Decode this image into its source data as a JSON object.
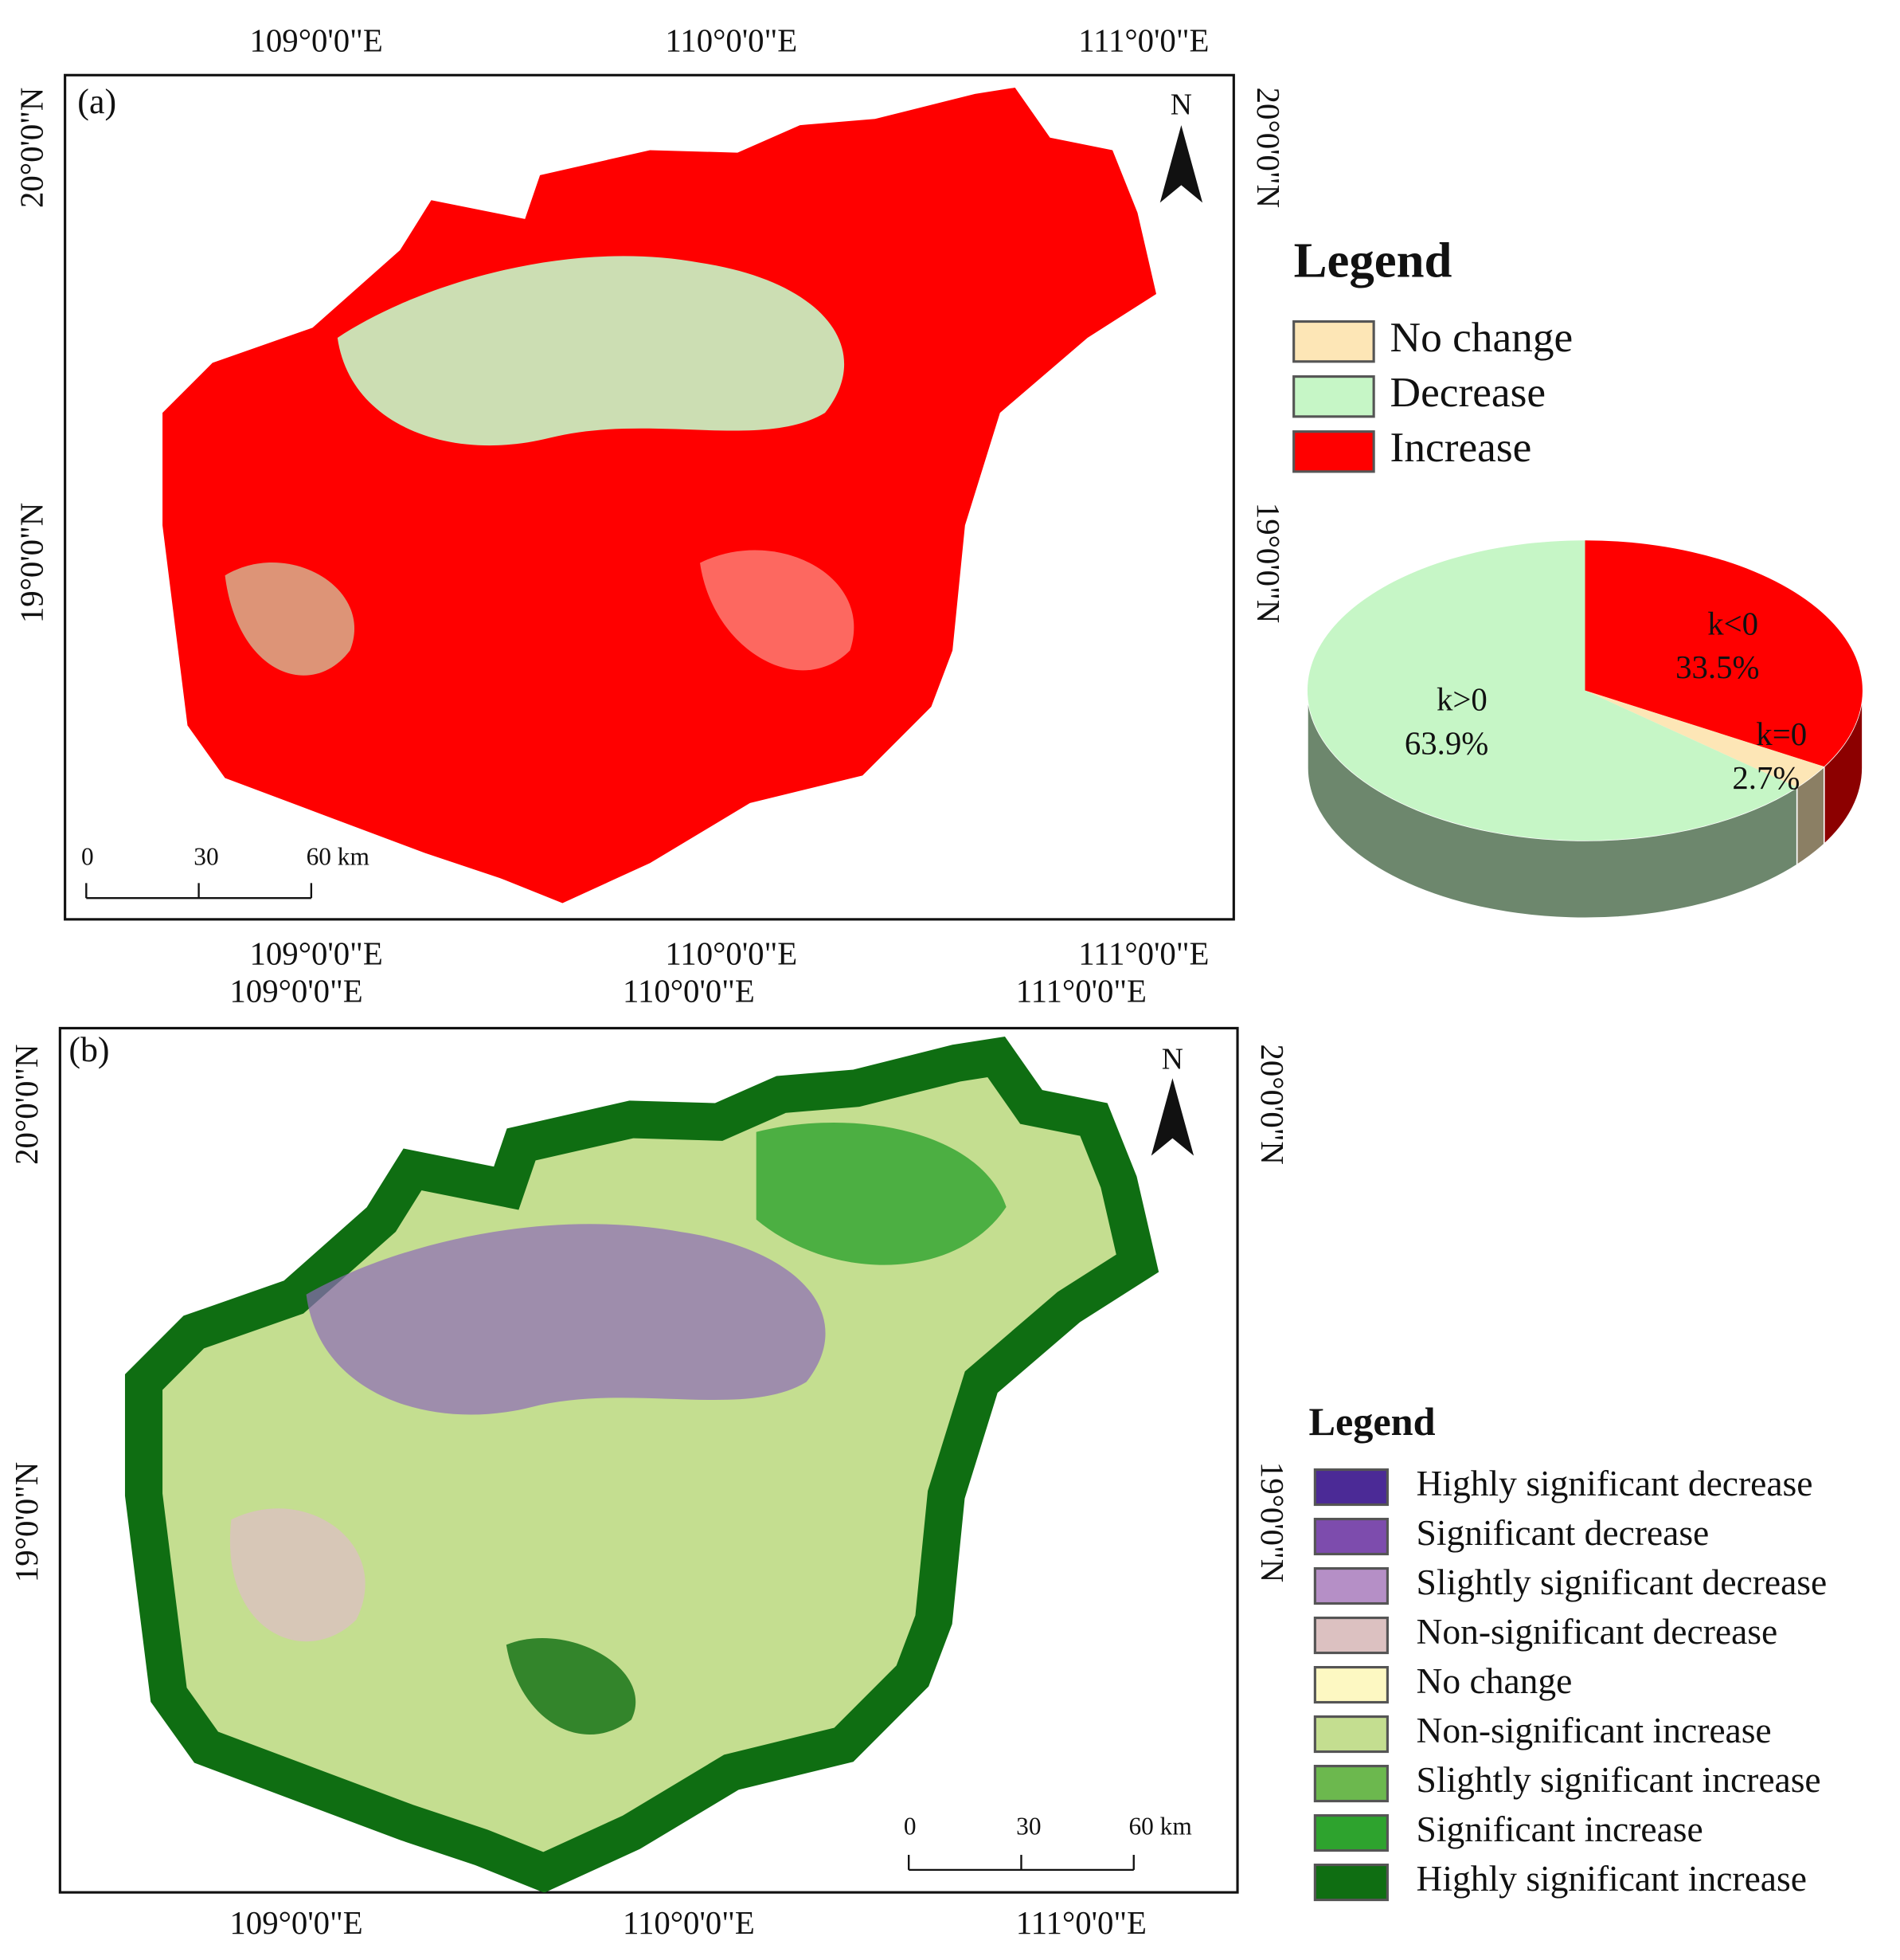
{
  "panels": [
    {
      "label": "(a)",
      "top_labels": [
        "109°0'0\"E",
        "110°0'0\"E",
        "111°0'0\"E"
      ],
      "bottom_labels": [
        "109°0'0\"E",
        "110°0'0\"E",
        "111°0'0\"E"
      ],
      "left_labels": [
        "20°0'0\"N",
        "19°0'0\"N"
      ],
      "right_labels": [
        "20°0'0\"N",
        "19°0'0\"N"
      ],
      "north": "N",
      "scale_labels": [
        "0",
        "30",
        "60 km"
      ],
      "legend": {
        "title": "Legend",
        "items": [
          {
            "name": "No change",
            "color": "#fde6b6"
          },
          {
            "name": "Decrease",
            "color": "#c6f6c6"
          },
          {
            "name": "Increase",
            "color": "#ff0000"
          }
        ]
      }
    },
    {
      "label": "(b)",
      "top_labels": [
        "109°0'0\"E",
        "110°0'0\"E",
        "111°0'0\"E"
      ],
      "bottom_labels": [
        "109°0'0\"E",
        "110°0'0\"E",
        "111°0'0\"E"
      ],
      "left_labels": [
        "20°0'0\"N",
        "19°0'0\"N"
      ],
      "right_labels": [
        "20°0'0\"N",
        "19°0'0\"N"
      ],
      "north": "N",
      "scale_labels": [
        "0",
        "30",
        "60 km"
      ],
      "legend": {
        "title": "Legend",
        "items": [
          {
            "name": "Highly significant decrease",
            "color": "#4b2a96"
          },
          {
            "name": "Significant decrease",
            "color": "#7d4cad"
          },
          {
            "name": "Slightly significant decrease",
            "color": "#b58fc6"
          },
          {
            "name": "Non-significant decrease",
            "color": "#dcc1c1"
          },
          {
            "name": "No change",
            "color": "#fdf8c2"
          },
          {
            "name": "Non-significant increase",
            "color": "#c4de90"
          },
          {
            "name": "Slightly significant increase",
            "color": "#6cb84e"
          },
          {
            "name": "Significant increase",
            "color": "#2ea32e"
          },
          {
            "name": "Highly significant increase",
            "color": "#0f6e12"
          }
        ]
      }
    }
  ],
  "chart_data": {
    "type": "pie",
    "categories": [
      "k<0",
      "k=0",
      "k>0"
    ],
    "values": [
      33.5,
      2.7,
      63.9
    ],
    "value_labels": [
      "33.5%",
      "2.7%",
      "63.9%"
    ],
    "colors": [
      "#ff0000",
      "#fde6b6",
      "#c6f6c6"
    ]
  }
}
